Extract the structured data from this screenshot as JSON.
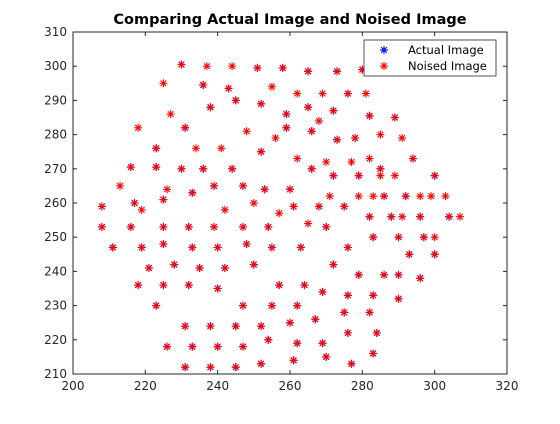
{
  "chart_data": {
    "type": "scatter",
    "title": "Comparing Actual Image and Noised Image",
    "xlabel": "",
    "ylabel": "",
    "xlim": [
      200,
      320
    ],
    "ylim": [
      210,
      310
    ],
    "x_ticks": [
      "200",
      "220",
      "240",
      "260",
      "280",
      "300",
      "320"
    ],
    "y_ticks": [
      "210",
      "220",
      "230",
      "240",
      "250",
      "260",
      "270",
      "280",
      "290",
      "300",
      "310"
    ],
    "grid": false,
    "legend_position": "top-right",
    "series": [
      {
        "name": "Actual Image",
        "marker": "asterisk",
        "color": "#0000ff",
        "points": [
          [
            230,
            300.5
          ],
          [
            236,
            294.5
          ],
          [
            243,
            293.5
          ],
          [
            251,
            299.5
          ],
          [
            258,
            299.5
          ],
          [
            265,
            298.5
          ],
          [
            273,
            298.5
          ],
          [
            280,
            299
          ],
          [
            223,
            276
          ],
          [
            231,
            282
          ],
          [
            238,
            288
          ],
          [
            245,
            290
          ],
          [
            252,
            289
          ],
          [
            259,
            286
          ],
          [
            265,
            288
          ],
          [
            272,
            287
          ],
          [
            276,
            292
          ],
          [
            282,
            285.5
          ],
          [
            289,
            285
          ],
          [
            216,
            270.5
          ],
          [
            223,
            270.5
          ],
          [
            230,
            270
          ],
          [
            236,
            270
          ],
          [
            244,
            270
          ],
          [
            252,
            275
          ],
          [
            259,
            282
          ],
          [
            266,
            281
          ],
          [
            273,
            278.5
          ],
          [
            278,
            279
          ],
          [
            285,
            270
          ],
          [
            294,
            273
          ],
          [
            208,
            259
          ],
          [
            217,
            260
          ],
          [
            225,
            261
          ],
          [
            233,
            263
          ],
          [
            239,
            265
          ],
          [
            247,
            265
          ],
          [
            253,
            264
          ],
          [
            260,
            264
          ],
          [
            266,
            270
          ],
          [
            272,
            268
          ],
          [
            279,
            268
          ],
          [
            286,
            262
          ],
          [
            292,
            262
          ],
          [
            300,
            268
          ],
          [
            208,
            253
          ],
          [
            216,
            253
          ],
          [
            225,
            253
          ],
          [
            232,
            253
          ],
          [
            239,
            253
          ],
          [
            247,
            253
          ],
          [
            254,
            253
          ],
          [
            261,
            259
          ],
          [
            268,
            259
          ],
          [
            275,
            259
          ],
          [
            282,
            256
          ],
          [
            288,
            256
          ],
          [
            296,
            256
          ],
          [
            304,
            256
          ],
          [
            211,
            247
          ],
          [
            219,
            247
          ],
          [
            225,
            248
          ],
          [
            233,
            247
          ],
          [
            240,
            247
          ],
          [
            248,
            248
          ],
          [
            255,
            247
          ],
          [
            263,
            247
          ],
          [
            270,
            253
          ],
          [
            276,
            247
          ],
          [
            283,
            250
          ],
          [
            290,
            250
          ],
          [
            297,
            250
          ],
          [
            221,
            241
          ],
          [
            228,
            242
          ],
          [
            235,
            241
          ],
          [
            242,
            241
          ],
          [
            250,
            242
          ],
          [
            257,
            236
          ],
          [
            264,
            236
          ],
          [
            272,
            242
          ],
          [
            279,
            239
          ],
          [
            286,
            239
          ],
          [
            293,
            245
          ],
          [
            300,
            245
          ],
          [
            218,
            236
          ],
          [
            225,
            236
          ],
          [
            232,
            236
          ],
          [
            240,
            235
          ],
          [
            247,
            230
          ],
          [
            255,
            230
          ],
          [
            262,
            230
          ],
          [
            269,
            234
          ],
          [
            276,
            233
          ],
          [
            283,
            233
          ],
          [
            290,
            239
          ],
          [
            296,
            238
          ],
          [
            223,
            230
          ],
          [
            231,
            224
          ],
          [
            238,
            224
          ],
          [
            245,
            224
          ],
          [
            252,
            224
          ],
          [
            260,
            225
          ],
          [
            267,
            226
          ],
          [
            275,
            228
          ],
          [
            282,
            228
          ],
          [
            290,
            232
          ],
          [
            226,
            218
          ],
          [
            233,
            218
          ],
          [
            240,
            218
          ],
          [
            247,
            218
          ],
          [
            254,
            220
          ],
          [
            262,
            219
          ],
          [
            269,
            219
          ],
          [
            276,
            222
          ],
          [
            284,
            222
          ],
          [
            231,
            212
          ],
          [
            238,
            212
          ],
          [
            245,
            212
          ],
          [
            252,
            213
          ],
          [
            261,
            214
          ],
          [
            270,
            215
          ],
          [
            277,
            213
          ],
          [
            283,
            216
          ]
        ]
      },
      {
        "name": "Noised Image",
        "marker": "asterisk",
        "color": "#ff0000",
        "points": [
          [
            230,
            300.5
          ],
          [
            236,
            294.5
          ],
          [
            243,
            293.5
          ],
          [
            251,
            299.5
          ],
          [
            258,
            299.5
          ],
          [
            265,
            298.5
          ],
          [
            273,
            298.5
          ],
          [
            280,
            299
          ],
          [
            223,
            276
          ],
          [
            231,
            282
          ],
          [
            238,
            288
          ],
          [
            245,
            290
          ],
          [
            252,
            289
          ],
          [
            259,
            286
          ],
          [
            265,
            288
          ],
          [
            272,
            287
          ],
          [
            276,
            292
          ],
          [
            282,
            285.5
          ],
          [
            289,
            285
          ],
          [
            216,
            270.5
          ],
          [
            223,
            270.5
          ],
          [
            230,
            270
          ],
          [
            236,
            270
          ],
          [
            244,
            270
          ],
          [
            252,
            275
          ],
          [
            259,
            282
          ],
          [
            266,
            281
          ],
          [
            273,
            278.5
          ],
          [
            278,
            279
          ],
          [
            285,
            270
          ],
          [
            294,
            273
          ],
          [
            208,
            259
          ],
          [
            217,
            260
          ],
          [
            225,
            261
          ],
          [
            233,
            263
          ],
          [
            239,
            265
          ],
          [
            247,
            265
          ],
          [
            253,
            264
          ],
          [
            260,
            264
          ],
          [
            266,
            270
          ],
          [
            272,
            268
          ],
          [
            279,
            268
          ],
          [
            286,
            262
          ],
          [
            292,
            262
          ],
          [
            300,
            268
          ],
          [
            208,
            253
          ],
          [
            216,
            253
          ],
          [
            225,
            253
          ],
          [
            232,
            253
          ],
          [
            239,
            253
          ],
          [
            247,
            253
          ],
          [
            254,
            253
          ],
          [
            261,
            259
          ],
          [
            268,
            259
          ],
          [
            275,
            259
          ],
          [
            282,
            256
          ],
          [
            288,
            256
          ],
          [
            296,
            256
          ],
          [
            304,
            256
          ],
          [
            211,
            247
          ],
          [
            219,
            247
          ],
          [
            225,
            248
          ],
          [
            233,
            247
          ],
          [
            240,
            247
          ],
          [
            248,
            248
          ],
          [
            255,
            247
          ],
          [
            263,
            247
          ],
          [
            270,
            253
          ],
          [
            276,
            247
          ],
          [
            283,
            250
          ],
          [
            290,
            250
          ],
          [
            297,
            250
          ],
          [
            221,
            241
          ],
          [
            228,
            242
          ],
          [
            235,
            241
          ],
          [
            242,
            241
          ],
          [
            250,
            242
          ],
          [
            257,
            236
          ],
          [
            264,
            236
          ],
          [
            272,
            242
          ],
          [
            279,
            239
          ],
          [
            286,
            239
          ],
          [
            293,
            245
          ],
          [
            300,
            245
          ],
          [
            218,
            236
          ],
          [
            225,
            236
          ],
          [
            232,
            236
          ],
          [
            240,
            235
          ],
          [
            247,
            230
          ],
          [
            255,
            230
          ],
          [
            262,
            230
          ],
          [
            269,
            234
          ],
          [
            276,
            233
          ],
          [
            283,
            233
          ],
          [
            290,
            239
          ],
          [
            296,
            238
          ],
          [
            223,
            230
          ],
          [
            231,
            224
          ],
          [
            238,
            224
          ],
          [
            245,
            224
          ],
          [
            252,
            224
          ],
          [
            260,
            225
          ],
          [
            267,
            226
          ],
          [
            275,
            228
          ],
          [
            282,
            228
          ],
          [
            290,
            232
          ],
          [
            226,
            218
          ],
          [
            233,
            218
          ],
          [
            240,
            218
          ],
          [
            247,
            218
          ],
          [
            254,
            220
          ],
          [
            262,
            219
          ],
          [
            269,
            219
          ],
          [
            276,
            222
          ],
          [
            284,
            222
          ],
          [
            231,
            212
          ],
          [
            238,
            212
          ],
          [
            245,
            212
          ],
          [
            252,
            213
          ],
          [
            261,
            214
          ],
          [
            270,
            215
          ],
          [
            277,
            213
          ],
          [
            283,
            216
          ],
          [
            213,
            265
          ],
          [
            219,
            258
          ],
          [
            226,
            264
          ],
          [
            242,
            258
          ],
          [
            250,
            260
          ],
          [
            257,
            257
          ],
          [
            265,
            254
          ],
          [
            271,
            262
          ],
          [
            279,
            262
          ],
          [
            285,
            268
          ],
          [
            299,
            262
          ],
          [
            303,
            262
          ],
          [
            307,
            256
          ],
          [
            300,
            250
          ],
          [
            218,
            282
          ],
          [
            227,
            286
          ],
          [
            234,
            276
          ],
          [
            241,
            276
          ],
          [
            248,
            281
          ],
          [
            256,
            279
          ],
          [
            262,
            273
          ],
          [
            270,
            272
          ],
          [
            277,
            272
          ],
          [
            282,
            273
          ],
          [
            291,
            279
          ],
          [
            289,
            268
          ],
          [
            296,
            262
          ],
          [
            225,
            295
          ],
          [
            237,
            300
          ],
          [
            244,
            300
          ],
          [
            255,
            294
          ],
          [
            262,
            292
          ],
          [
            269,
            292
          ],
          [
            281,
            292
          ],
          [
            268,
            284
          ],
          [
            285,
            280
          ],
          [
            283,
            262
          ],
          [
            291,
            256
          ]
        ]
      }
    ]
  }
}
